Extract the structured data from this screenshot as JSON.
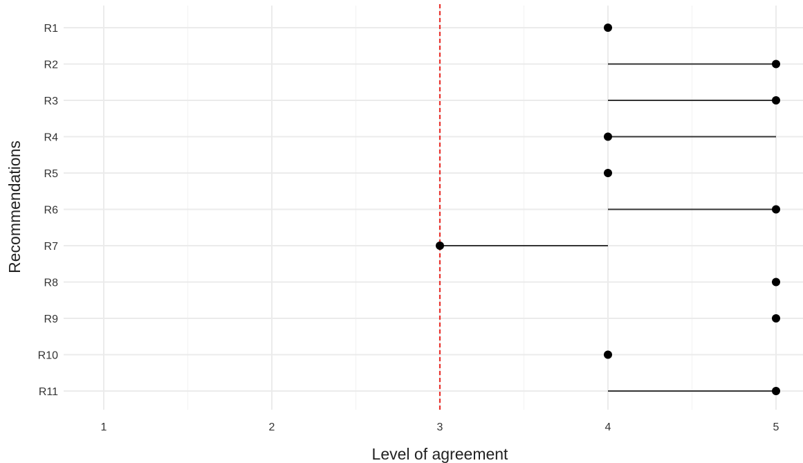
{
  "chart_data": {
    "type": "scatter",
    "subtype": "dumbbell",
    "title": "",
    "xlabel": "Level of agreement",
    "ylabel": "Recommendations",
    "xlim": [
      0.8,
      5.2
    ],
    "xticks": [
      1,
      2,
      3,
      4,
      5
    ],
    "categories": [
      "R1",
      "R2",
      "R3",
      "R4",
      "R5",
      "R6",
      "R7",
      "R8",
      "R9",
      "R10",
      "R11"
    ],
    "series": [
      {
        "values": [
          {
            "label": "R1",
            "range": [
              4,
              4
            ],
            "point": 4
          },
          {
            "label": "R2",
            "range": [
              4,
              5
            ],
            "point": 5
          },
          {
            "label": "R3",
            "range": [
              4,
              5
            ],
            "point": 5
          },
          {
            "label": "R4",
            "range": [
              4,
              5
            ],
            "point": 4
          },
          {
            "label": "R5",
            "range": [
              4,
              4
            ],
            "point": 4
          },
          {
            "label": "R6",
            "range": [
              4,
              5
            ],
            "point": 5
          },
          {
            "label": "R7",
            "range": [
              3,
              4
            ],
            "point": 3
          },
          {
            "label": "R8",
            "range": [
              5,
              5
            ],
            "point": 5
          },
          {
            "label": "R9",
            "range": [
              5,
              5
            ],
            "point": 5
          },
          {
            "label": "R10",
            "range": [
              4,
              4
            ],
            "point": 4
          },
          {
            "label": "R11",
            "range": [
              4,
              5
            ],
            "point": 5
          }
        ]
      }
    ],
    "reference_line": {
      "x": 3,
      "style": "dashed",
      "color": "#e8312c"
    },
    "grid": true,
    "legend": "none"
  }
}
